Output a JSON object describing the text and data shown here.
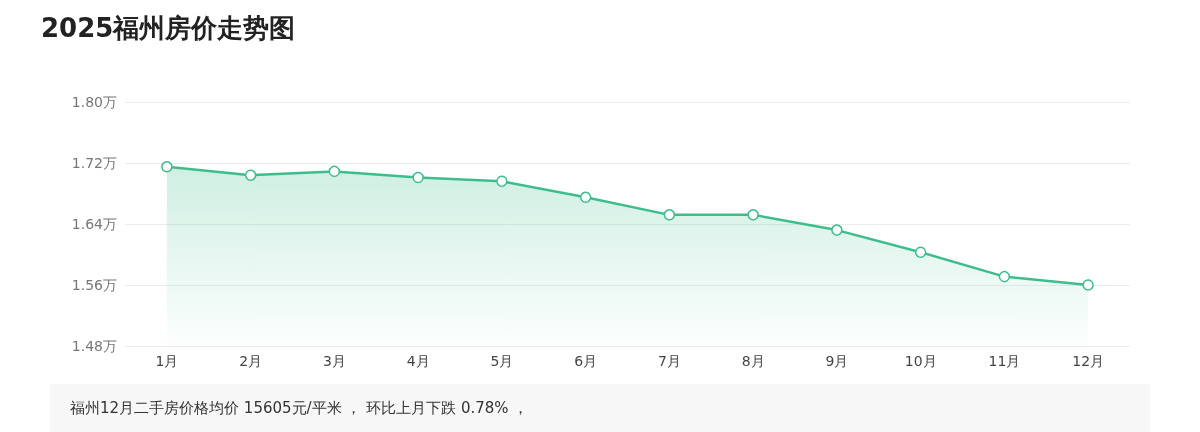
{
  "chart_data": {
    "type": "area",
    "title": "2025福州房价走势图",
    "categories": [
      "1月",
      "2月",
      "3月",
      "4月",
      "5月",
      "6月",
      "7月",
      "8月",
      "9月",
      "10月",
      "11月",
      "12月"
    ],
    "series": [
      {
        "color": "#3dbd8c",
        "values": [
          1.715,
          1.704,
          1.709,
          1.701,
          1.696,
          1.675,
          1.652,
          1.652,
          1.632,
          1.603,
          1.571,
          1.56
        ]
      }
    ],
    "ylim": [
      1.48,
      1.8
    ],
    "yticks": [
      {
        "value": 1.48,
        "label": "1.48万"
      },
      {
        "value": 1.56,
        "label": "1.56万"
      },
      {
        "value": 1.64,
        "label": "1.64万"
      },
      {
        "value": 1.72,
        "label": "1.72万"
      },
      {
        "value": 1.8,
        "label": "1.80万"
      }
    ],
    "grid": "y",
    "marker": "circle",
    "annotations": [
      "福州12月二手房价格均价 15605元/平米 ， 环比上月下跌 0.78% ，"
    ]
  }
}
